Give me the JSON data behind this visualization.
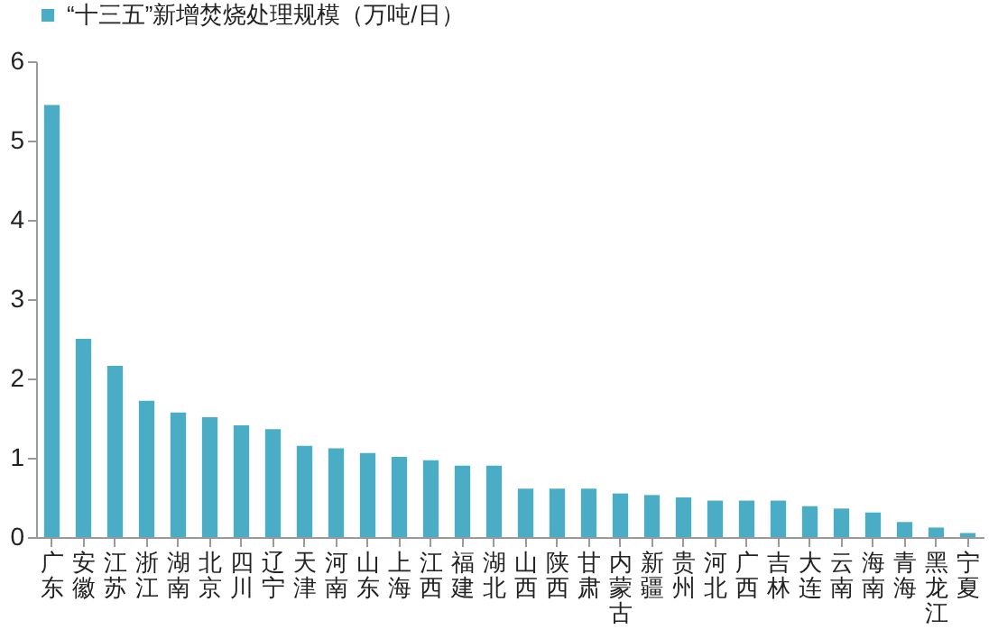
{
  "chart_data": {
    "type": "bar",
    "categories": [
      "广东",
      "安徽",
      "江苏",
      "浙江",
      "湖南",
      "北京",
      "四川",
      "辽宁",
      "天津",
      "河南",
      "山东",
      "上海",
      "江西",
      "福建",
      "湖北",
      "山西",
      "陕西",
      "甘肃",
      "内蒙古",
      "新疆",
      "贵州",
      "河北",
      "广西",
      "吉林",
      "大连",
      "云南",
      "海南",
      "青海",
      "黑龙江",
      "宁夏"
    ],
    "series": [
      {
        "name": "“十三五”新增焚烧处理规模（万吨/日）",
        "color": "#4bacc6",
        "values": [
          5.45,
          2.5,
          2.16,
          1.72,
          1.57,
          1.51,
          1.41,
          1.36,
          1.15,
          1.12,
          1.06,
          1.01,
          0.97,
          0.9,
          0.9,
          0.61,
          0.61,
          0.61,
          0.55,
          0.53,
          0.5,
          0.46,
          0.46,
          0.46,
          0.39,
          0.36,
          0.31,
          0.19,
          0.12,
          0.05
        ]
      }
    ],
    "ylim": [
      0,
      6
    ],
    "yticks": [
      0,
      1,
      2,
      3,
      4,
      5,
      6
    ],
    "grid": false,
    "legend": "top"
  }
}
